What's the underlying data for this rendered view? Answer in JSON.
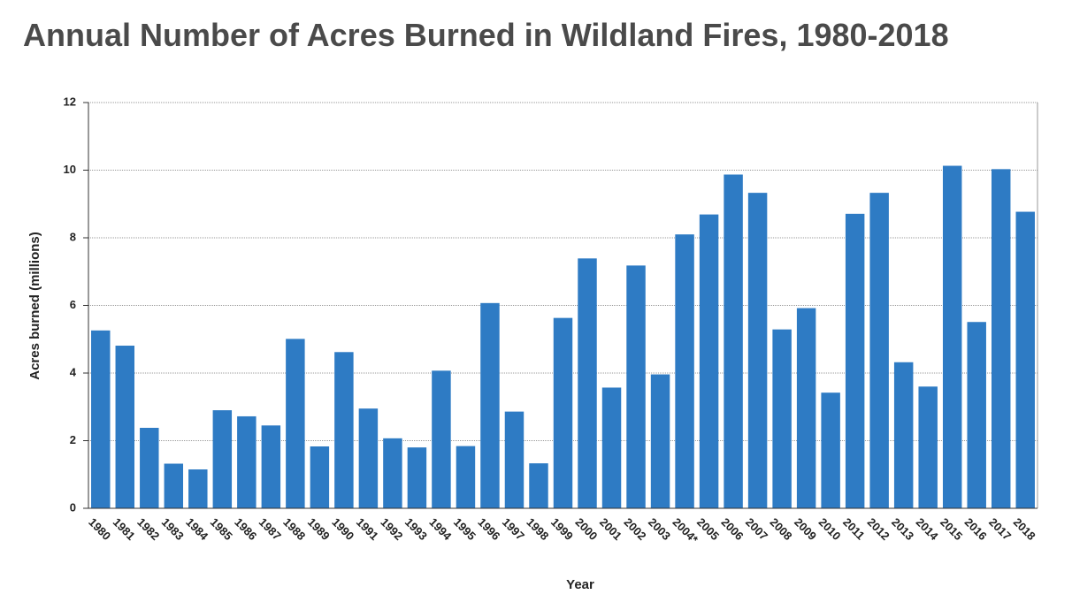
{
  "chart_data": {
    "type": "bar",
    "title": "Annual Number of Acres Burned in Wildland Fires, 1980-2018",
    "x_label": "Year",
    "y_label": "Acres burned (millions)",
    "categories": [
      "1980",
      "1981",
      "1982",
      "1983",
      "1984",
      "1985",
      "1986",
      "1987",
      "1988",
      "1989",
      "1990",
      "1991",
      "1992",
      "1993",
      "1994",
      "1995",
      "1996",
      "1997",
      "1998",
      "1999",
      "2000",
      "2001",
      "2002",
      "2003",
      "2004*",
      "2005",
      "2006",
      "2007",
      "2008",
      "2009",
      "2010",
      "2011",
      "2012",
      "2013",
      "2014",
      "2015",
      "2016",
      "2017",
      "2018"
    ],
    "values": [
      5.26,
      4.81,
      2.38,
      1.32,
      1.15,
      2.9,
      2.72,
      2.45,
      5.01,
      1.83,
      4.62,
      2.95,
      2.07,
      1.8,
      4.07,
      1.84,
      6.07,
      2.86,
      1.33,
      5.63,
      7.39,
      3.57,
      7.18,
      3.96,
      8.1,
      8.69,
      9.87,
      9.33,
      5.29,
      5.92,
      3.42,
      8.71,
      9.33,
      4.32,
      3.6,
      10.13,
      5.51,
      10.03,
      8.77
    ],
    "color": "#2e7bc4",
    "ylim": [
      0,
      12
    ],
    "yticks": [
      0,
      2,
      4,
      6,
      8,
      10,
      12
    ],
    "grid": true
  }
}
